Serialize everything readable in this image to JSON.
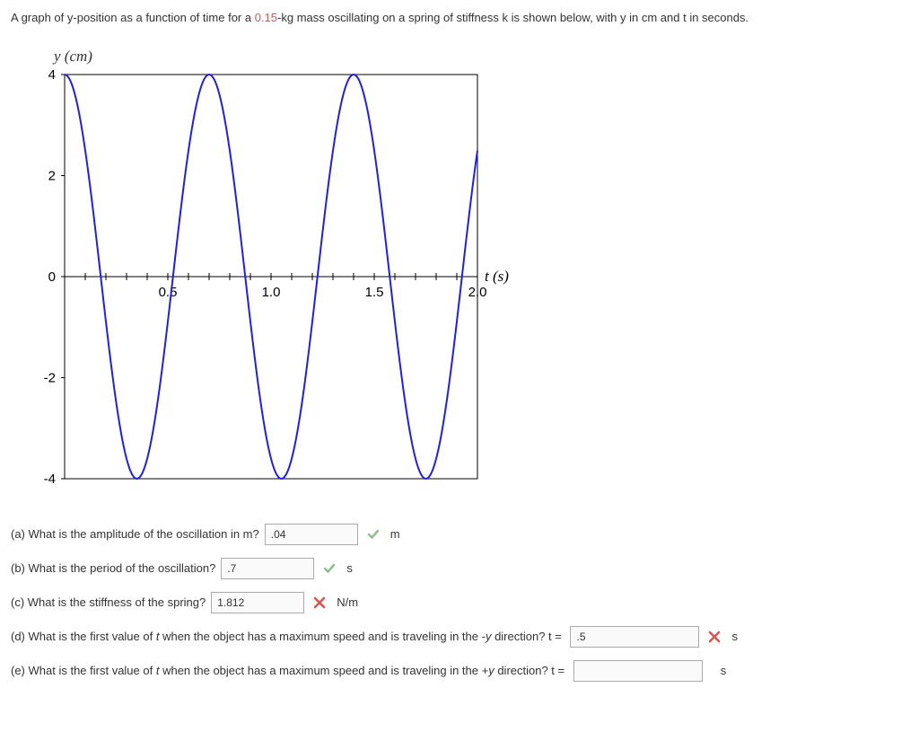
{
  "intro": {
    "pre": "A graph of y-position as a function of time for a ",
    "mass": "0.15",
    "post": "-kg mass oscillating on a spring of stiffness k is shown below, with y in cm and t in seconds."
  },
  "chart": {
    "type": "line",
    "y_axis_label": "y (cm)",
    "x_axis_label": "t (s)",
    "y_ticks": [
      4,
      2,
      0,
      -2,
      -4
    ],
    "x_ticks": [
      "0.5",
      "1.0",
      "1.5",
      "2.0"
    ],
    "x_tick_values": [
      0.5,
      1.0,
      1.5,
      2.0
    ],
    "xlim": [
      0,
      2.0
    ],
    "ylim": [
      -4,
      4
    ],
    "curve_color": "#2020e0",
    "amplitude_cm": 4,
    "period_s": 0.7,
    "phase_start": "max",
    "grid": false,
    "background": "#ffffff",
    "line_width": 2
  },
  "questions": {
    "a": {
      "label": "(a) What is the amplitude of the oscillation in m?",
      "value": ".04",
      "status": "correct",
      "unit": "m"
    },
    "b": {
      "label": "(b) What is the period of the oscillation?",
      "value": ".7",
      "status": "correct",
      "unit": "s"
    },
    "c": {
      "label": "(c) What is the stiffness of the spring?",
      "value": "1.812",
      "status": "wrong",
      "unit": "N/m"
    },
    "d": {
      "label_pre": "(d) What is the first value of ",
      "var": "t",
      "label_mid": " when the object has a maximum speed and is traveling in the -",
      "var2": "y",
      "label_post": " direction? t = ",
      "value": ".5",
      "status": "wrong",
      "unit": "s"
    },
    "e": {
      "label_pre": "(e) What is the first value of ",
      "var": "t",
      "label_mid": " when the object has a maximum speed and is traveling in the +",
      "var2": "y",
      "label_post": " direction? t = ",
      "value": "",
      "status": "none",
      "unit": "s"
    }
  },
  "icons": {
    "correct_color": "#8fbf8f",
    "wrong_color": "#d9534f"
  }
}
